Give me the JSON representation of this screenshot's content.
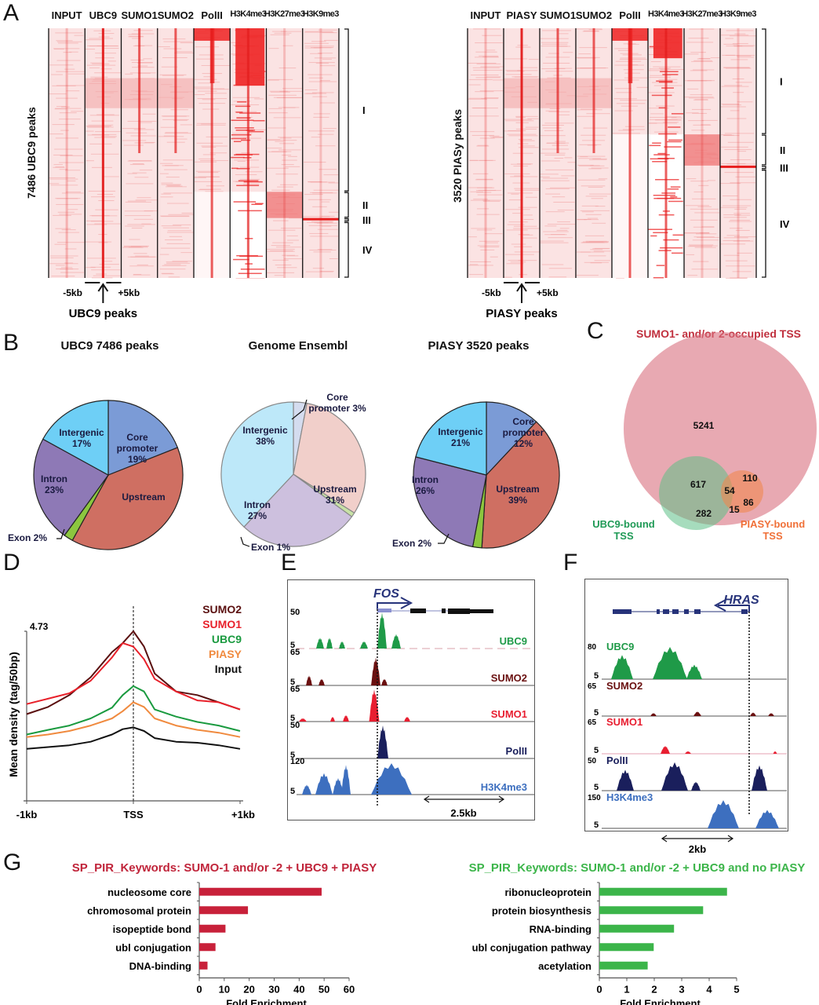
{
  "panels": {
    "A": "A",
    "B": "B",
    "C": "C",
    "D": "D",
    "E": "E",
    "F": "F",
    "G": "G"
  },
  "heatmaps": [
    {
      "row_label": "7486 UBC9 peaks",
      "columns": [
        "INPUT",
        "UBC9",
        "SUMO1",
        "SUMO2",
        "PolII",
        "H3K4me3",
        "H3K27me3",
        "H3K9me3"
      ],
      "clusters": [
        {
          "label": "I",
          "fraction_start": 0.0,
          "fraction_end": 0.655
        },
        {
          "label": "II",
          "fraction_start": 0.655,
          "fraction_end": 0.76
        },
        {
          "label": "III",
          "fraction_start": 0.76,
          "fraction_end": 0.775
        },
        {
          "label": "IV",
          "fraction_start": 0.775,
          "fraction_end": 1.0
        }
      ],
      "left_tick": "-5kb",
      "right_tick": "+5kb",
      "anchor_label": "UBC9 peaks",
      "highlight_col": 1
    },
    {
      "row_label": "3520 PIASy peaks",
      "columns": [
        "INPUT",
        "PIASY",
        "SUMO1",
        "SUMO2",
        "PolII",
        "H3K4me3",
        "H3K27me3",
        "H3K9me3"
      ],
      "clusters": [
        {
          "label": "I",
          "fraction_start": 0.0,
          "fraction_end": 0.425
        },
        {
          "label": "II",
          "fraction_start": 0.425,
          "fraction_end": 0.55
        },
        {
          "label": "III",
          "fraction_start": 0.55,
          "fraction_end": 0.565
        },
        {
          "label": "IV",
          "fraction_start": 0.565,
          "fraction_end": 1.0
        }
      ],
      "left_tick": "-5kb",
      "right_tick": "+5kb",
      "anchor_label": "PIASY peaks",
      "highlight_col": 1
    }
  ],
  "chart_data": [
    {
      "id": "B1",
      "type": "pie",
      "title": "UBC9 7486 peaks",
      "slices": [
        {
          "name": "Core promoter",
          "value": 19,
          "label": "Core promoter 19%",
          "color": "#7b9bd6"
        },
        {
          "name": "Upstream",
          "value": 39,
          "label": "Upstream",
          "color": "#cf6f62"
        },
        {
          "name": "Exon",
          "value": 2,
          "label": "Exon 2%",
          "color": "#8cc63f"
        },
        {
          "name": "Intron",
          "value": 23,
          "label": "Intron 23%",
          "color": "#8e79b6"
        },
        {
          "name": "Intergenic",
          "value": 17,
          "label": "Intergenic 17%",
          "color": "#6ecff6"
        }
      ]
    },
    {
      "id": "B2",
      "type": "pie",
      "title": "Genome Ensembl",
      "slices": [
        {
          "name": "Core promoter",
          "value": 3,
          "label": "Core promoter 3%",
          "color": "#d4dcef"
        },
        {
          "name": "Upstream",
          "value": 31,
          "label": "Upstream 31%",
          "color": "#f1cfca"
        },
        {
          "name": "Exon",
          "value": 1,
          "label": "Exon 1%",
          "color": "#c8e2a6"
        },
        {
          "name": "Intron",
          "value": 27,
          "label": "Intron 27%",
          "color": "#cdc0de"
        },
        {
          "name": "Intergenic",
          "value": 38,
          "label": "Intergenic 38%",
          "color": "#bde8f9"
        }
      ]
    },
    {
      "id": "B3",
      "type": "pie",
      "title": "PIASY 3520 peaks",
      "slices": [
        {
          "name": "Core promoter",
          "value": 12,
          "label": "Core promoter 12%",
          "color": "#7b9bd6"
        },
        {
          "name": "Upstream",
          "value": 39,
          "label": "Upstream 39%",
          "color": "#cf6f62"
        },
        {
          "name": "Exon",
          "value": 2,
          "label": "Exon 2%",
          "color": "#8cc63f"
        },
        {
          "name": "Intron",
          "value": 26,
          "label": "Intron 26%",
          "color": "#8e79b6"
        },
        {
          "name": "Intergenic",
          "value": 21,
          "label": "Intergenic 21%",
          "color": "#6ecff6"
        }
      ]
    },
    {
      "id": "C",
      "type": "venn",
      "sets": [
        {
          "name": "SUMO1- and/or 2-occupied TSS",
          "color": "#d9707f"
        },
        {
          "name": "UBC9-bound TSS",
          "color": "#5cbf86"
        },
        {
          "name": "PIASY-bound TSS",
          "color": "#f08850"
        }
      ],
      "regions": [
        {
          "sets": [
            "SUMO"
          ],
          "value": 5241
        },
        {
          "sets": [
            "SUMO",
            "UBC9"
          ],
          "value": 617
        },
        {
          "sets": [
            "SUMO",
            "PIASY"
          ],
          "value": 110
        },
        {
          "sets": [
            "SUMO",
            "UBC9",
            "PIASY"
          ],
          "value": 54
        },
        {
          "sets": [
            "PIASY"
          ],
          "value": 86
        },
        {
          "sets": [
            "UBC9",
            "PIASY"
          ],
          "value": 15
        },
        {
          "sets": [
            "UBC9"
          ],
          "value": 282
        }
      ]
    },
    {
      "id": "D",
      "type": "line",
      "ylabel": "Mean density (tag/50bp)",
      "ymax_label": "4.73",
      "ylim": [
        0,
        4.73
      ],
      "xticks": [
        "-1kb",
        "TSS",
        "+1kb"
      ],
      "x": [
        -1000,
        -800,
        -600,
        -400,
        -200,
        -100,
        0,
        100,
        200,
        400,
        600,
        800,
        1000
      ],
      "series": [
        {
          "name": "SUMO2",
          "color": "#5a0f0f",
          "values": [
            2.42,
            2.62,
            2.95,
            3.45,
            4.15,
            4.4,
            4.73,
            4.3,
            3.55,
            3.05,
            2.95,
            2.75,
            2.55
          ]
        },
        {
          "name": "SUMO1",
          "color": "#e8202a",
          "values": [
            2.7,
            2.85,
            3.0,
            3.35,
            4.0,
            4.4,
            4.3,
            3.95,
            3.4,
            3.05,
            2.8,
            2.75,
            2.55
          ]
        },
        {
          "name": "UBC9",
          "color": "#1a9a3f",
          "values": [
            1.85,
            1.98,
            2.1,
            2.3,
            2.6,
            2.95,
            3.2,
            3.05,
            2.55,
            2.35,
            2.2,
            2.1,
            1.95
          ]
        },
        {
          "name": "PIASY",
          "color": "#f08a3e",
          "values": [
            1.78,
            1.85,
            1.95,
            2.1,
            2.3,
            2.5,
            2.75,
            2.62,
            2.3,
            2.1,
            1.98,
            1.9,
            1.78
          ]
        },
        {
          "name": "Input",
          "color": "#111111",
          "values": [
            1.45,
            1.5,
            1.55,
            1.65,
            1.85,
            2.0,
            2.05,
            1.95,
            1.75,
            1.65,
            1.62,
            1.55,
            1.45
          ]
        }
      ]
    },
    {
      "id": "G1",
      "type": "bar",
      "orientation": "horizontal",
      "title": "SP_PIR_Keywords: SUMO-1 and/or -2 + UBC9 + PIASY",
      "title_color": "#c0243a",
      "bar_color": "#c8213a",
      "categories": [
        "nucleosome core",
        "chromosomal protein",
        "isopeptide bond",
        "ubl conjugation",
        "DNA-binding"
      ],
      "values": [
        49,
        19.5,
        10.5,
        6.5,
        3.3
      ],
      "xlabel": "Fold Enrichment",
      "xlim": [
        0,
        60
      ],
      "xticks": [
        0,
        10,
        20,
        30,
        40,
        50,
        60
      ]
    },
    {
      "id": "G2",
      "type": "bar",
      "orientation": "horizontal",
      "title": "SP_PIR_Keywords: SUMO-1 and/or -2 + UBC9 and no PIASY",
      "title_color": "#3cb54a",
      "bar_color": "#3cb54a",
      "categories": [
        "ribonucleoprotein",
        "protein biosynthesis",
        "RNA-binding",
        "ubl conjugation pathway",
        "acetylation"
      ],
      "values": [
        4.65,
        3.78,
        2.72,
        1.98,
        1.76
      ],
      "xlabel": "Fold Enrichment",
      "xlim": [
        0,
        5
      ],
      "xticks": [
        0,
        1,
        2,
        3,
        4,
        5
      ]
    }
  ],
  "tracks": {
    "E": {
      "gene": "FOS",
      "scale_bar": "2.5kb",
      "tracks": [
        {
          "name": "UBC9",
          "max": "50",
          "min": "5",
          "color": "#1f9a48"
        },
        {
          "name": "SUMO2",
          "max": "65",
          "min": "5",
          "color": "#6a1010"
        },
        {
          "name": "SUMO1",
          "max": "65",
          "min": "5",
          "color": "#e81e30"
        },
        {
          "name": "PolII",
          "max": "50",
          "min": "5",
          "color": "#1a1f5c"
        },
        {
          "name": "H3K4me3",
          "max": "120",
          "min": "5",
          "color": "#3d6fbf"
        }
      ]
    },
    "F": {
      "gene": "HRAS",
      "scale_bar": "2kb",
      "tracks": [
        {
          "name": "UBC9",
          "max": "80",
          "min": "5",
          "color": "#1f9a48"
        },
        {
          "name": "SUMO2",
          "max": "65",
          "min": "5",
          "color": "#6a1010"
        },
        {
          "name": "SUMO1",
          "max": "65",
          "min": "5",
          "color": "#e81e30"
        },
        {
          "name": "PolII",
          "max": "50",
          "min": "5",
          "color": "#1a1f5c"
        },
        {
          "name": "H3K4me3",
          "max": "150",
          "min": "5",
          "color": "#3d6fbf"
        }
      ]
    }
  }
}
